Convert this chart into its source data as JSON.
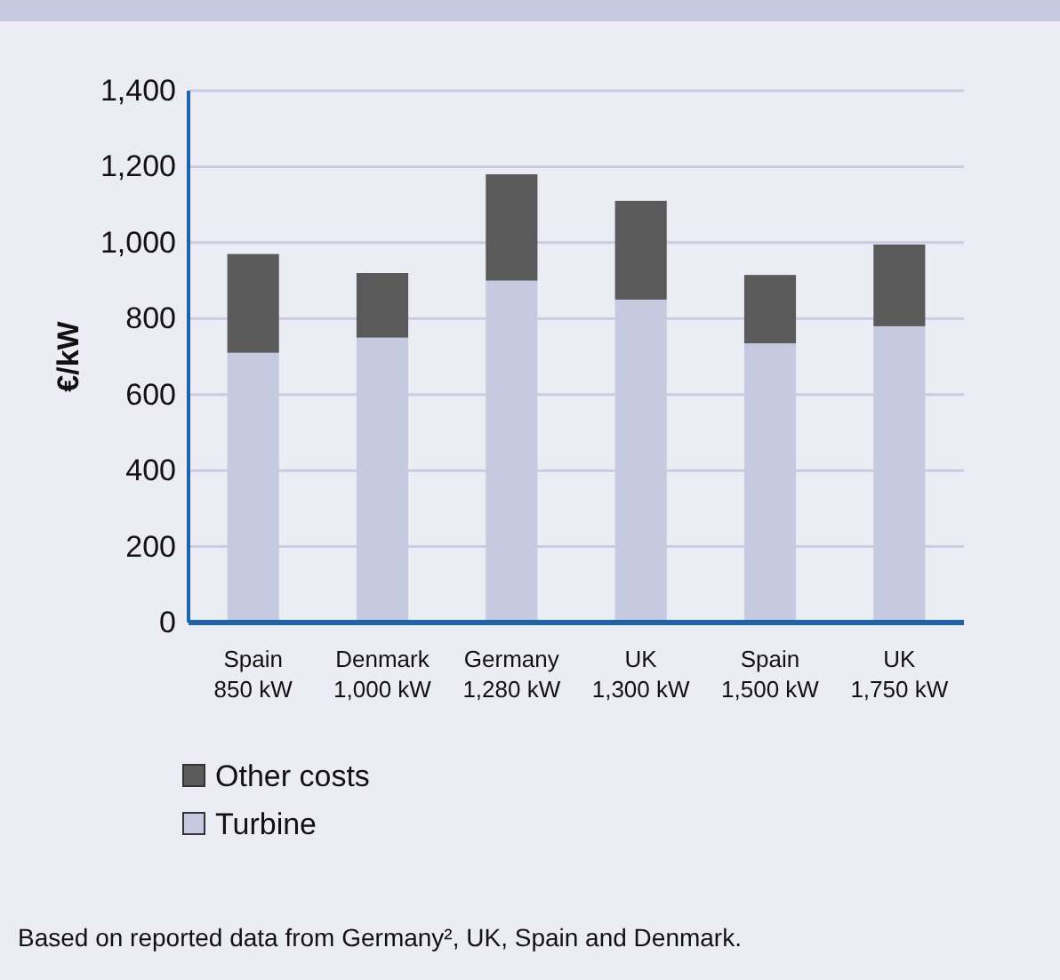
{
  "chart_data": {
    "type": "bar",
    "ylabel": "€/kW",
    "categories": [
      "Spain\n850 kW",
      "Denmark\n1,000 kW",
      "Germany\n1,280 kW",
      "UK\n1,300 kW",
      "Spain\n1,500 kW",
      "UK\n1,750 kW"
    ],
    "series": [
      {
        "name": "Turbine",
        "color": "#c5cae0",
        "values": [
          710,
          750,
          900,
          850,
          735,
          780
        ]
      },
      {
        "name": "Other costs",
        "color": "#5a5a5a",
        "values": [
          260,
          170,
          280,
          260,
          180,
          215
        ]
      }
    ],
    "stacked": true,
    "ylim": [
      0,
      1400
    ],
    "yticks": [
      0,
      200,
      400,
      600,
      800,
      {
        "value": 1000,
        "label": "1,000"
      },
      {
        "value": 1200,
        "label": "1,200"
      },
      {
        "value": 1400,
        "label": "1,400"
      }
    ],
    "grid": "y",
    "legend": "bottom left",
    "annotations": [
      "Based on reported data from Germany², UK, Spain and Denmark."
    ]
  }
}
